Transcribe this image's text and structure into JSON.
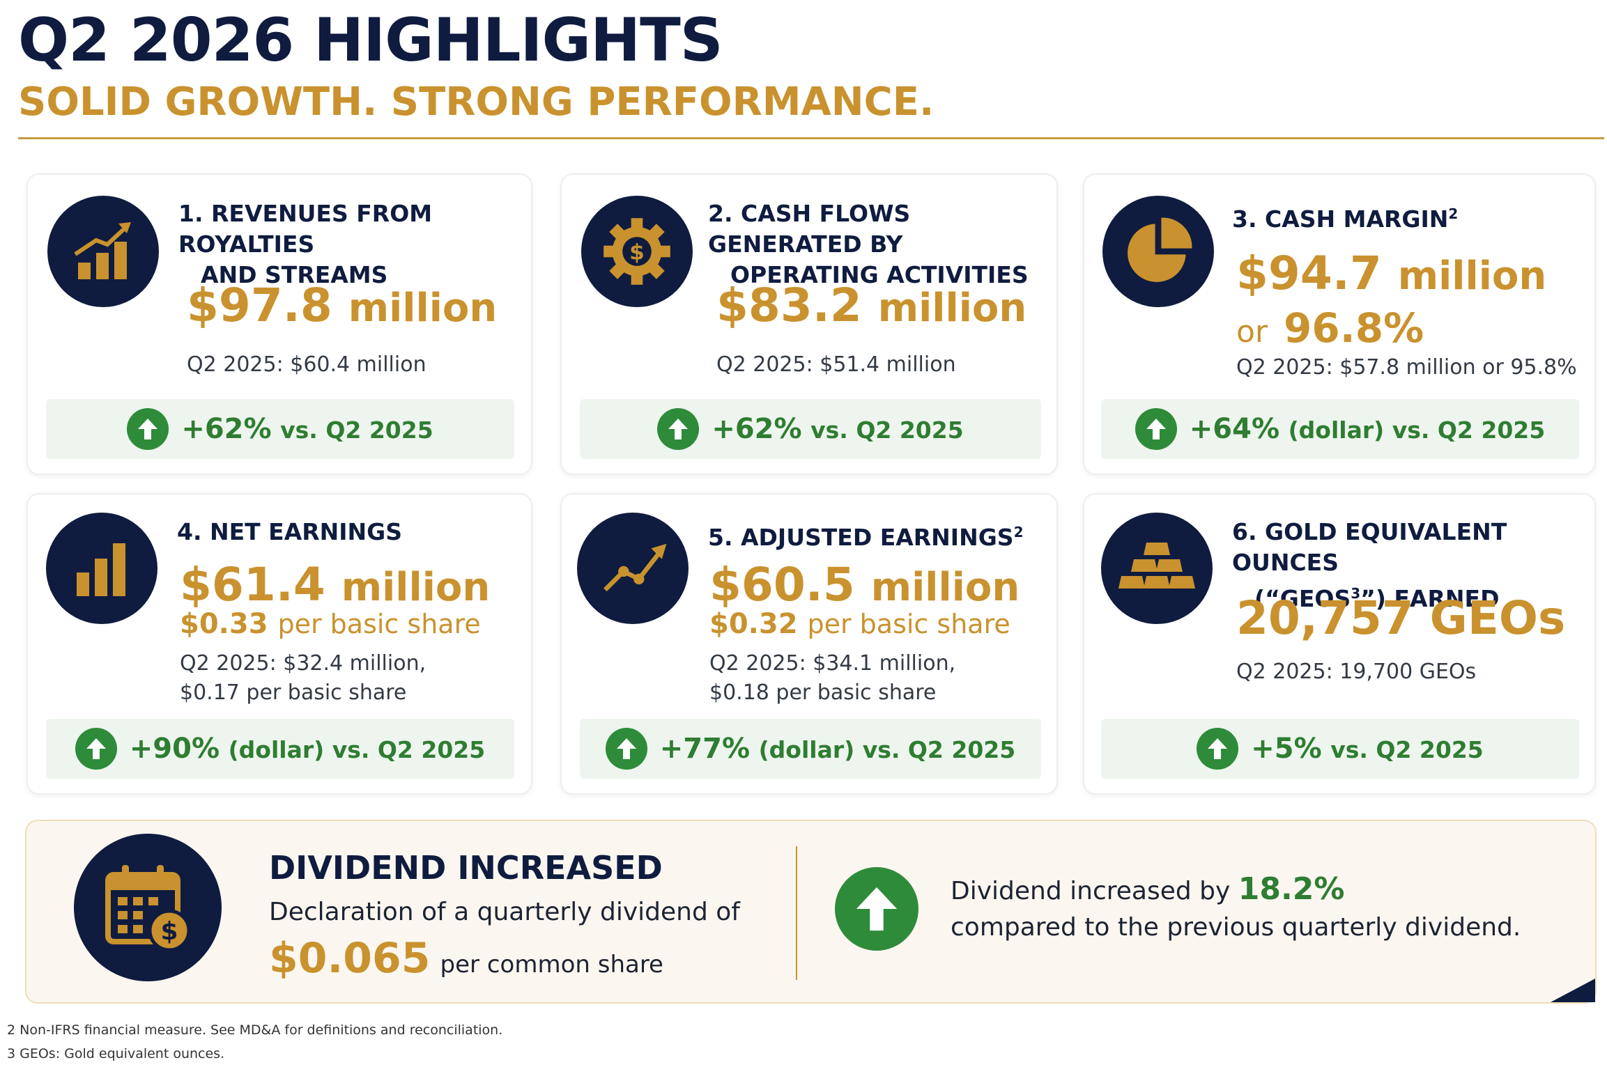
{
  "header": {
    "title": "Q2 2026 HIGHLIGHTS",
    "subtitle": "SOLID GROWTH. STRONG PERFORMANCE."
  },
  "cards": [
    {
      "title_line1": "1. REVENUES FROM ROYALTIES",
      "title_line2": "AND STREAMS",
      "value": "$97.8",
      "unit": "million",
      "prior": "Q2 2025: $60.4 million",
      "change_pct": "+62%",
      "change_rest": "vs. Q2 2025",
      "icon": "bar-chart-arrow-icon"
    },
    {
      "title_line1": "2. CASH FLOWS GENERATED BY",
      "title_line2": "OPERATING ACTIVITIES",
      "value": "$83.2",
      "unit": "million",
      "prior": "Q2 2025: $51.4 million",
      "change_pct": "+62%",
      "change_rest": "vs. Q2 2025",
      "icon": "gear-dollar-icon"
    },
    {
      "title_line1": "3. CASH MARGIN",
      "title_sup": "2",
      "value": "$94.7",
      "unit": "million",
      "value2_prefix": "or",
      "value2": "96.8%",
      "prior": "Q2 2025: $57.8 million or 95.8%",
      "change_pct": "+64%",
      "change_rest": "(dollar) vs. Q2 2025",
      "icon": "pie-chart-icon"
    },
    {
      "title_line1": "4. NET EARNINGS",
      "value": "$61.4",
      "unit": "million",
      "per_share": "$0.33",
      "per_share_label": "per basic share",
      "prior_line1": "Q2 2025: $32.4 million,",
      "prior_line2": "$0.17 per basic share",
      "change_pct": "+90%",
      "change_rest": "(dollar) vs. Q2 2025",
      "icon": "bar-chart-icon"
    },
    {
      "title_line1": "5. ADJUSTED EARNINGS",
      "title_sup": "2",
      "value": "$60.5",
      "unit": "million",
      "per_share": "$0.32",
      "per_share_label": "per basic share",
      "prior_line1": "Q2 2025: $34.1 million,",
      "prior_line2": "$0.18 per basic share",
      "change_pct": "+77%",
      "change_rest": "(dollar) vs. Q2 2025",
      "icon": "trend-line-icon"
    },
    {
      "title_line1": "6. GOLD EQUIVALENT OUNCES",
      "title_line2_a": "(“GEOS",
      "title_line2_sup": "3",
      "title_line2_b": "”) EARNED",
      "value": "20,757 GEOs",
      "prior": "Q2 2025: 19,700 GEOs",
      "change_pct": "+5%",
      "change_rest": "vs. Q2 2025",
      "icon": "gold-bars-icon"
    }
  ],
  "dividend": {
    "title": "DIVIDEND INCREASED",
    "declaration": "Declaration of a quarterly dividend of",
    "amount": "$0.065",
    "per": "per common share",
    "increase_prefix": "Dividend increased by",
    "increase_pct": "18.2%",
    "increase_suffix": "compared to the previous quarterly dividend.",
    "icon": "calendar-dollar-icon"
  },
  "footnotes": [
    "2  Non-IFRS financial measure. See MD&A for definitions and reconciliation.",
    "3  GEOs: Gold equivalent ounces."
  ],
  "colors": {
    "navy": "#0f1c3f",
    "gold": "#c9922e",
    "green": "#2e8b3a",
    "green_bg": "#eef5ee"
  }
}
